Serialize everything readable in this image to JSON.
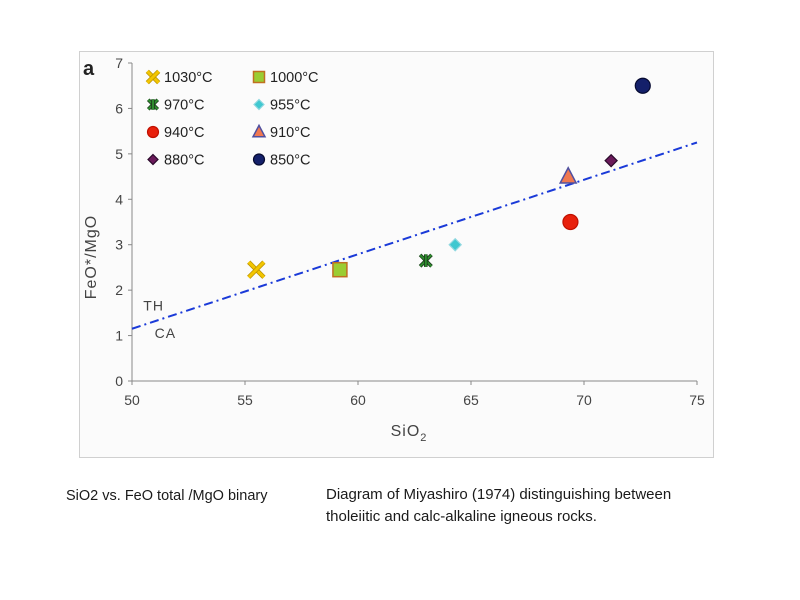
{
  "captions": {
    "left": "SiO2 vs. FeO total /MgO binary",
    "right": "Diagram of Miyashiro (1974) distinguishing between tholeiitic and calc-alkaline igneous rocks."
  },
  "chart_data": {
    "type": "scatter",
    "panel_label": "a",
    "xlabel": "SiO",
    "xlabel_subscript": "2",
    "ylabel": "FeO*/MgO",
    "xlim": [
      50,
      75
    ],
    "ylim": [
      0,
      7
    ],
    "x_ticks": [
      50,
      55,
      60,
      65,
      70,
      75
    ],
    "y_ticks": [
      0,
      1,
      2,
      3,
      4,
      5,
      6,
      7
    ],
    "grid": false,
    "legend_position": "top-left",
    "series": [
      {
        "name": "1030°C",
        "marker": "x",
        "color": "#f2c500",
        "x": [
          55.5
        ],
        "y": [
          2.45
        ]
      },
      {
        "name": "1000°C",
        "marker": "square",
        "color": "#9acd32",
        "x": [
          59.2
        ],
        "y": [
          2.45
        ]
      },
      {
        "name": "970°C",
        "marker": "star",
        "color": "#2e8b2e",
        "x": [
          63.0
        ],
        "y": [
          2.65
        ]
      },
      {
        "name": "955°C",
        "marker": "diamond",
        "color": "#40c8d0",
        "x": [
          64.3
        ],
        "y": [
          3.0
        ]
      },
      {
        "name": "940°C",
        "marker": "circle",
        "color": "#e8200c",
        "x": [
          69.4
        ],
        "y": [
          3.5
        ]
      },
      {
        "name": "910°C",
        "marker": "triangle",
        "color": "#f07850",
        "x": [
          69.3
        ],
        "y": [
          4.5
        ]
      },
      {
        "name": "880°C",
        "marker": "diamond",
        "color": "#6a1a5a",
        "x": [
          71.2
        ],
        "y": [
          4.85
        ]
      },
      {
        "name": "850°C",
        "marker": "circle",
        "color": "#14206a",
        "x": [
          72.6
        ],
        "y": [
          6.5
        ]
      }
    ],
    "divider_line": {
      "x": [
        50,
        75
      ],
      "y": [
        1.15,
        5.25
      ],
      "style": "dash-dot",
      "color": "#1a3ad8"
    },
    "annotations": [
      {
        "text": "TH",
        "x": 50.5,
        "y": 1.55
      },
      {
        "text": "CA",
        "x": 51.0,
        "y": 0.95
      }
    ]
  }
}
